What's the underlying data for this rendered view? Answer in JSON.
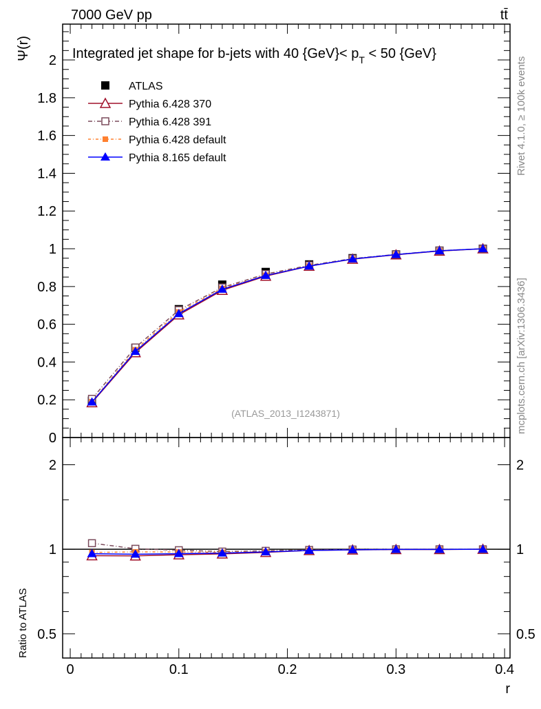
{
  "chart_data": {
    "type": "line",
    "header_left": "7000 GeV pp",
    "header_right": "tt̄",
    "title": "Integrated jet shape for b-jets with 40 {GeV}< p",
    "title_sub": "T",
    "title_end": " < 50 {GeV}",
    "side_label_top": "Rivet 4.1.0, ≥ 100k events",
    "side_label_bottom": "mcplots.cern.ch [arXiv:1306.3436]",
    "watermark": "(ATLAS_2013_I1243871)",
    "ylabel": "Ψ(r)",
    "ratio_ylabel": "Ratio to ATLAS",
    "xlabel": "r",
    "xlim": [
      -0.007,
      0.405
    ],
    "ylim": [
      0,
      2.19
    ],
    "ratio_ylim": [
      0.41,
      2.5
    ],
    "x_ticks": [
      "0",
      "0.1",
      "0.2",
      "0.3",
      "0.4"
    ],
    "y_ticks": [
      "0",
      "0.2",
      "0.4",
      "0.6",
      "0.8",
      "1",
      "1.2",
      "1.4",
      "1.6",
      "1.8",
      "2"
    ],
    "ratio_ticks": [
      "0.5",
      "1",
      "2"
    ],
    "x": [
      0.02,
      0.06,
      0.1,
      0.14,
      0.18,
      0.22,
      0.26,
      0.3,
      0.34,
      0.38
    ],
    "series": [
      {
        "name": "ATLAS",
        "color": "#000000",
        "values": [
          0.195,
          0.475,
          0.68,
          0.81,
          0.877,
          0.917,
          0.95,
          0.97,
          0.99,
          1.0
        ]
      },
      {
        "name": "Pythia 6.428 370",
        "color": "#a0102a",
        "values": [
          0.185,
          0.45,
          0.65,
          0.78,
          0.855,
          0.908,
          0.945,
          0.968,
          0.988,
          1.0
        ]
      },
      {
        "name": "Pythia 6.428 391",
        "color": "#7a4a5a",
        "values": [
          0.205,
          0.477,
          0.675,
          0.795,
          0.866,
          0.912,
          0.948,
          0.97,
          0.99,
          1.0
        ]
      },
      {
        "name": "Pythia 6.428 default",
        "color": "#ff8030",
        "values": [
          0.19,
          0.465,
          0.665,
          0.79,
          0.86,
          0.909,
          0.946,
          0.969,
          0.989,
          1.0
        ]
      },
      {
        "name": "Pythia 8.165 default",
        "color": "#0000ff",
        "values": [
          0.188,
          0.456,
          0.656,
          0.785,
          0.858,
          0.908,
          0.946,
          0.969,
          0.989,
          1.0
        ]
      }
    ]
  }
}
